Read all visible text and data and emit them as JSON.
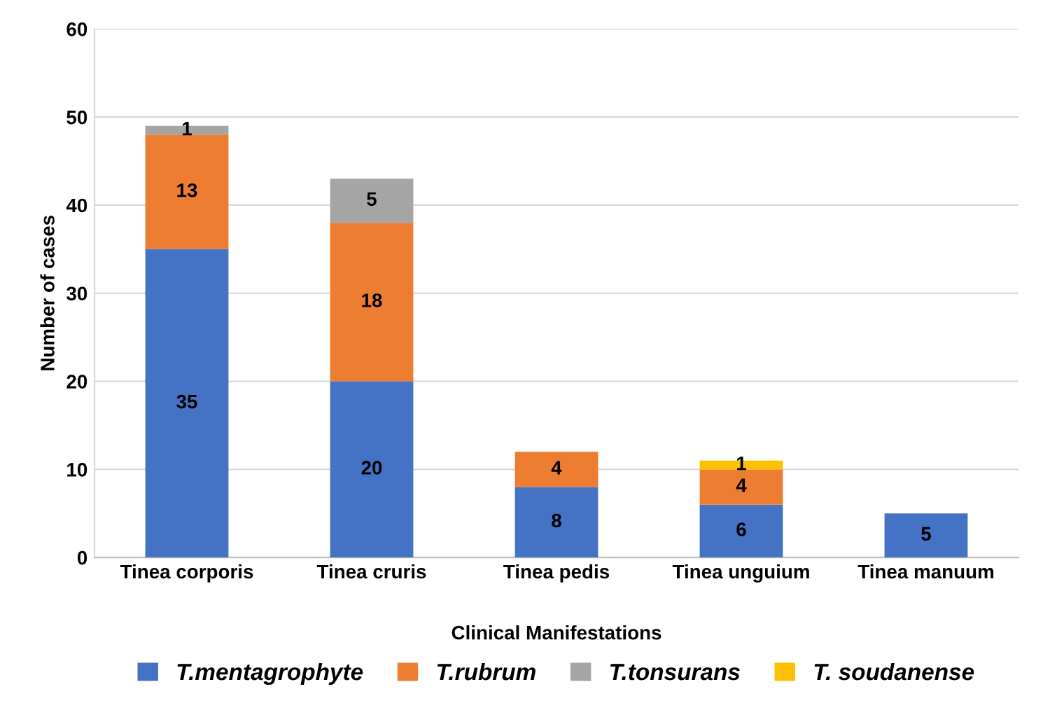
{
  "chart_data": {
    "type": "bar",
    "stacked": true,
    "xlabel": "Clinical Manifestations",
    "ylabel": "Number of cases",
    "categories": [
      "Tinea corporis",
      "Tinea cruris",
      "Tinea pedis",
      "Tinea unguium",
      "Tinea manuum"
    ],
    "series": [
      {
        "name": "T.mentagrophyte",
        "color": "#4472c4",
        "values": [
          35,
          20,
          8,
          6,
          5
        ]
      },
      {
        "name": "T.rubrum",
        "color": "#ed7d31",
        "values": [
          13,
          18,
          4,
          4,
          null
        ]
      },
      {
        "name": "T.tonsurans",
        "color": "#a5a5a5",
        "values": [
          1,
          5,
          null,
          null,
          null
        ]
      },
      {
        "name": "T. soudanense",
        "color": "#ffc000",
        "values": [
          null,
          null,
          null,
          1,
          null
        ]
      }
    ],
    "ylim": [
      0,
      60
    ],
    "yticks": [
      0,
      10,
      20,
      30,
      40,
      50,
      60
    ],
    "grid": "y",
    "legend": "bottom",
    "data_labels": true
  }
}
